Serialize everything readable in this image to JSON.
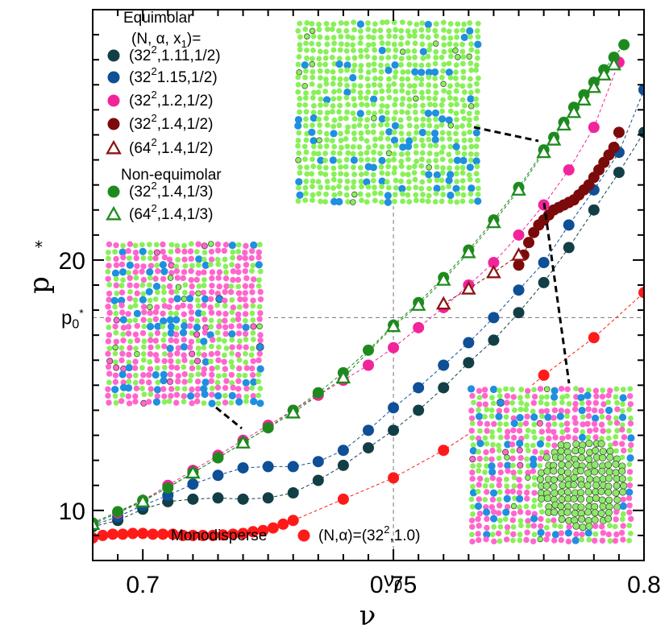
{
  "chart_data": {
    "type": "scatter",
    "xlabel": "ν",
    "ylabel": "p",
    "ylabel_sup": "*",
    "xlim": [
      0.69,
      0.8
    ],
    "ylim": [
      8,
      30
    ],
    "x_ticks": [
      "0.7",
      "0.75",
      "0.8"
    ],
    "x_tick_values": [
      0.7,
      0.75,
      0.8
    ],
    "y_ticks": [
      "10",
      "20"
    ],
    "y_tick_values": [
      10,
      20
    ],
    "nu0_label": "ν",
    "nu0_sub": "0",
    "nu0_value": 0.75,
    "p0_label": "p",
    "p0_sub": "0",
    "p0_sup": "*",
    "p0_value": 17.7,
    "legend": {
      "title_equimolar": "Equimolar",
      "title_params": "(N, α, x",
      "title_params_sub": "1",
      "title_params_end": ")=",
      "title_nonequimolar": "Non-equimolar",
      "entries": [
        {
          "pre": "(32",
          "sup": "2",
          "post": ",1.11,1/2)",
          "color": "#123f45",
          "marker": "circle"
        },
        {
          "pre": "(32",
          "sup": "2",
          "post": "1.15,1/2)",
          "color": "#0e4f96",
          "marker": "circle"
        },
        {
          "pre": "(32",
          "sup": "2",
          "post": ",1.2,1/2)",
          "color": "#f2249a",
          "marker": "circle"
        },
        {
          "pre": "(32",
          "sup": "2",
          "post": ",1.4,1/2)",
          "color": "#7b0a0a",
          "marker": "circle"
        },
        {
          "pre": "(64",
          "sup": "2",
          "post": ",1.4,1/2)",
          "color": "#8b1515",
          "marker": "triangle"
        },
        {
          "pre": "(32",
          "sup": "2",
          "post": ",1.4,1/3)",
          "color": "#1e8a1e",
          "marker": "circle"
        },
        {
          "pre": "(64",
          "sup": "2",
          "post": ",1.4,1/3)",
          "color": "#1e8a1e",
          "marker": "triangle"
        }
      ],
      "mono_label": "Monodisperse",
      "mono_entry": {
        "pre": "(N,α)=(32",
        "sup": "2",
        "post": ",1.0)",
        "color": "#ff1a1a",
        "marker": "circle"
      }
    },
    "series": [
      {
        "color": "#ff1a1a",
        "marker": "circle",
        "x": [
          0.69,
          0.692,
          0.694,
          0.696,
          0.698,
          0.7,
          0.702,
          0.704,
          0.706,
          0.708,
          0.71,
          0.712,
          0.714,
          0.716,
          0.718,
          0.72,
          0.722,
          0.724,
          0.726,
          0.728,
          0.73,
          0.74,
          0.75,
          0.76,
          0.77,
          0.78,
          0.79,
          0.8
        ],
        "y": [
          8.9,
          9.0,
          9.05,
          9.05,
          9.08,
          9.08,
          9.05,
          9.05,
          9.05,
          9.0,
          9.0,
          9.0,
          9.0,
          9.02,
          9.05,
          9.08,
          9.15,
          9.2,
          9.3,
          9.45,
          9.6,
          10.45,
          11.3,
          12.4,
          13.7,
          15.4,
          16.9,
          18.7
        ]
      },
      {
        "color": "#123f45",
        "marker": "circle",
        "x": [
          0.69,
          0.695,
          0.7,
          0.705,
          0.71,
          0.715,
          0.72,
          0.725,
          0.73,
          0.735,
          0.74,
          0.745,
          0.75,
          0.755,
          0.76,
          0.765,
          0.77,
          0.775,
          0.78,
          0.785,
          0.79,
          0.795,
          0.8
        ],
        "y": [
          9.35,
          9.6,
          10.05,
          10.35,
          10.45,
          10.5,
          10.45,
          10.5,
          10.7,
          11.2,
          11.8,
          12.5,
          13.2,
          14.0,
          14.9,
          15.9,
          16.8,
          17.9,
          19.1,
          20.5,
          22.0,
          23.5,
          25.1
        ]
      },
      {
        "color": "#0e4f96",
        "marker": "circle",
        "x": [
          0.69,
          0.695,
          0.7,
          0.705,
          0.71,
          0.715,
          0.72,
          0.725,
          0.73,
          0.735,
          0.74,
          0.745,
          0.75,
          0.755,
          0.76,
          0.765,
          0.77,
          0.775,
          0.78,
          0.785,
          0.79,
          0.795,
          0.8
        ],
        "y": [
          9.4,
          9.75,
          10.2,
          10.6,
          11.05,
          11.4,
          11.7,
          11.75,
          11.75,
          11.95,
          12.4,
          13.2,
          14.1,
          14.9,
          15.8,
          16.7,
          17.7,
          18.8,
          19.9,
          21.4,
          22.8,
          24.3,
          26.8
        ]
      },
      {
        "color": "#f2249a",
        "marker": "circle",
        "x": [
          0.69,
          0.695,
          0.7,
          0.705,
          0.71,
          0.715,
          0.72,
          0.725,
          0.73,
          0.735,
          0.74,
          0.745,
          0.75,
          0.755,
          0.76,
          0.765,
          0.77,
          0.775,
          0.78,
          0.785,
          0.79,
          0.795
        ],
        "y": [
          9.45,
          9.9,
          10.4,
          11.0,
          11.6,
          12.2,
          12.8,
          13.4,
          14.0,
          14.6,
          15.2,
          15.8,
          16.5,
          17.3,
          18.1,
          19.0,
          19.9,
          21.0,
          22.2,
          23.6,
          25.3,
          27.9
        ]
      },
      {
        "color": "#7b0a0a",
        "marker": "circle",
        "x": [
          0.775,
          0.776,
          0.777,
          0.778,
          0.779,
          0.78,
          0.781,
          0.782,
          0.783,
          0.784,
          0.785,
          0.786,
          0.787,
          0.788,
          0.789,
          0.79,
          0.791,
          0.792,
          0.793,
          0.794,
          0.795
        ],
        "y": [
          19.8,
          20.2,
          20.7,
          21.1,
          21.4,
          21.6,
          21.8,
          22.0,
          22.1,
          22.2,
          22.3,
          22.4,
          22.6,
          22.8,
          23.0,
          23.3,
          23.6,
          23.9,
          24.2,
          24.5,
          25.1
        ]
      },
      {
        "color": "#8b1515",
        "marker": "triangle",
        "x": [
          0.76,
          0.765,
          0.77,
          0.775
        ],
        "y": [
          18.25,
          18.85,
          19.5,
          20.2
        ]
      },
      {
        "color": "#1e8a1e",
        "marker": "circle",
        "x": [
          0.69,
          0.695,
          0.7,
          0.705,
          0.71,
          0.715,
          0.72,
          0.725,
          0.73,
          0.735,
          0.74,
          0.745,
          0.75,
          0.755,
          0.76,
          0.765,
          0.77,
          0.775,
          0.78,
          0.782,
          0.784,
          0.786,
          0.788,
          0.79,
          0.792,
          0.794,
          0.796
        ],
        "y": [
          9.5,
          9.95,
          10.4,
          10.9,
          11.5,
          12.1,
          12.7,
          13.3,
          14.0,
          14.7,
          15.5,
          16.4,
          17.4,
          18.3,
          19.3,
          20.4,
          21.6,
          22.9,
          24.4,
          24.9,
          25.5,
          26.1,
          26.6,
          27.1,
          27.6,
          28.1,
          28.6
        ]
      },
      {
        "color": "#1e8a1e",
        "marker": "triangle",
        "x": [
          0.69,
          0.7,
          0.71,
          0.72,
          0.73,
          0.74,
          0.75,
          0.755,
          0.76,
          0.765,
          0.77,
          0.775,
          0.78,
          0.782,
          0.784,
          0.786,
          0.788,
          0.79,
          0.792,
          0.794
        ],
        "y": [
          9.45,
          10.35,
          11.5,
          12.7,
          13.9,
          15.3,
          17.35,
          18.2,
          19.2,
          20.3,
          21.5,
          22.8,
          24.3,
          24.8,
          25.4,
          25.9,
          26.4,
          26.9,
          27.4,
          27.8
        ]
      }
    ]
  },
  "insets": [
    {
      "name": "inset-left",
      "dominant": "#ff66cc"
    },
    {
      "name": "inset-top",
      "dominant": "#88f058"
    },
    {
      "name": "inset-right",
      "dominant": "#ff66cc"
    }
  ]
}
